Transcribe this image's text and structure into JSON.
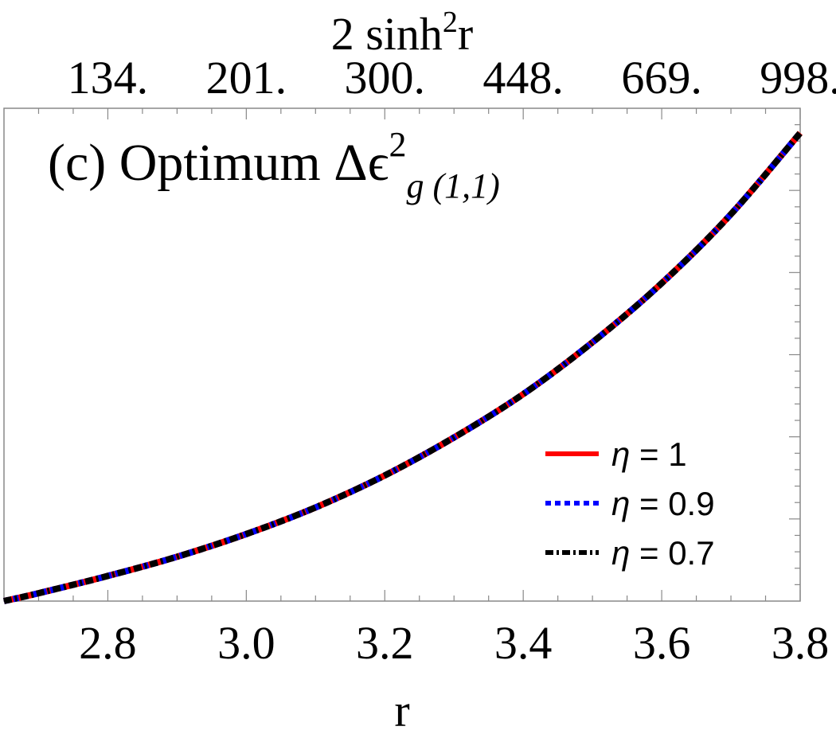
{
  "chart_data": {
    "type": "line",
    "title": {
      "prefix": "(c) Optimum ",
      "symbol": "Δϵ",
      "superscript": "2",
      "subscript": "g (1,1)"
    },
    "xlabel": "r",
    "x2label": {
      "base": "2 sinh",
      "superscript": "2",
      "suffix": "r"
    },
    "xlim": [
      2.65,
      3.8
    ],
    "ylim": [
      0,
      1
    ],
    "xticks": [
      {
        "value": 2.8,
        "label": "2.8"
      },
      {
        "value": 3.0,
        "label": "3.0"
      },
      {
        "value": 3.2,
        "label": "3.2"
      },
      {
        "value": 3.4,
        "label": "3.4"
      },
      {
        "value": 3.6,
        "label": "3.6"
      },
      {
        "value": 3.8,
        "label": "3.8"
      }
    ],
    "x2ticks": [
      {
        "value": 2.8,
        "label": "134."
      },
      {
        "value": 3.0,
        "label": "201."
      },
      {
        "value": 3.2,
        "label": "300."
      },
      {
        "value": 3.4,
        "label": "448."
      },
      {
        "value": 3.6,
        "label": "669."
      },
      {
        "value": 3.8,
        "label": "998."
      }
    ],
    "y_tick_labels_shown": false,
    "grid": false,
    "legend_position": "lower-right",
    "series": [
      {
        "name": "η = 1",
        "color": "#ff0000",
        "style": "solid",
        "x": [
          2.65,
          2.7,
          2.8,
          2.9,
          3.0,
          3.1,
          3.2,
          3.3,
          3.4,
          3.5,
          3.6,
          3.7,
          3.8
        ],
        "y": [
          0.0,
          0.016,
          0.051,
          0.09,
          0.136,
          0.19,
          0.255,
          0.332,
          0.42,
          0.525,
          0.645,
          0.785,
          0.95
        ]
      },
      {
        "name": "η = 0.9",
        "color": "#0000ff",
        "style": "dotted",
        "x": [
          2.65,
          2.7,
          2.8,
          2.9,
          3.0,
          3.1,
          3.2,
          3.3,
          3.4,
          3.5,
          3.6,
          3.7,
          3.8
        ],
        "y": [
          0.0,
          0.016,
          0.051,
          0.09,
          0.136,
          0.19,
          0.255,
          0.332,
          0.42,
          0.525,
          0.645,
          0.785,
          0.95
        ]
      },
      {
        "name": "η = 0.7",
        "color": "#000000",
        "style": "dashdot",
        "x": [
          2.65,
          2.7,
          2.8,
          2.9,
          3.0,
          3.1,
          3.2,
          3.3,
          3.4,
          3.5,
          3.6,
          3.7,
          3.8
        ],
        "y": [
          0.0,
          0.016,
          0.051,
          0.09,
          0.136,
          0.19,
          0.255,
          0.332,
          0.42,
          0.525,
          0.645,
          0.785,
          0.95
        ]
      }
    ]
  }
}
